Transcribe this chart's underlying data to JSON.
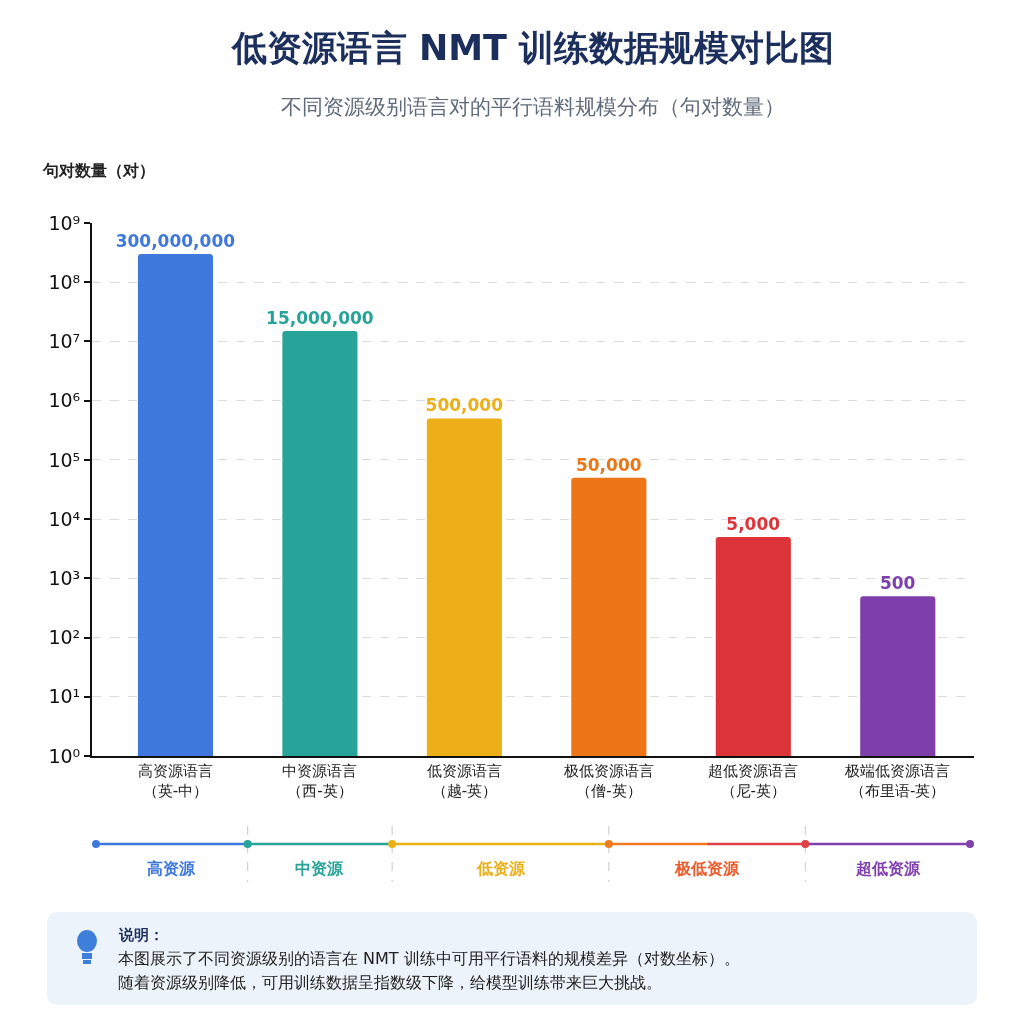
{
  "chart_data": {
    "type": "bar",
    "title": "低资源语言 NMT 训练数据规模对比图",
    "subtitle": "不同资源级别语言对的平行语料规模分布（句对数量）",
    "ylabel": "句对数量（对）",
    "categories": [
      "高资源语言（英-中）",
      "中资源语言（西-英）",
      "低资源语言（越-英）",
      "极低资源语言（僧-英）",
      "超低资源语言（尼-英）",
      "极端低资源语言（布里语-英）"
    ],
    "values": [
      300000000,
      15000000,
      500000,
      50000,
      5000,
      500
    ],
    "value_labels": [
      "300,000,000",
      "15,000,000",
      "500,000",
      "50,000",
      "5,000",
      "500"
    ],
    "colors": [
      "#3f78dc",
      "#27a39a",
      "#ecaf17",
      "#ec7615",
      "#dc3439",
      "#7e3fab"
    ],
    "log": "y",
    "ylim": [
      1,
      1000000000
    ],
    "yticks": [
      {
        "value": 1,
        "label": "10⁰"
      },
      {
        "value": 10,
        "label": "10¹"
      },
      {
        "value": 100,
        "label": "10²"
      },
      {
        "value": 1000,
        "label": "10³"
      },
      {
        "value": 10000,
        "label": "10⁴"
      },
      {
        "value": 100000,
        "label": "10⁵"
      },
      {
        "value": 1000000,
        "label": "10⁶"
      },
      {
        "value": 10000000,
        "label": "10⁷"
      },
      {
        "value": 100000000,
        "label": "10⁸"
      },
      {
        "value": 1000000000,
        "label": "10⁹"
      }
    ],
    "grid": "y",
    "annotations": [
      "高资源",
      "中资源",
      "低资源",
      "极低资源",
      "超低资源",
      "说明：",
      "本图展示了不同资源级别的语言在 NMT 训练中可用平行语料的规模差异（对数坐标）。",
      "随着资源级别降低，可用训练数据呈指数级下降，给模型训练带来巨大挑战。"
    ]
  }
}
